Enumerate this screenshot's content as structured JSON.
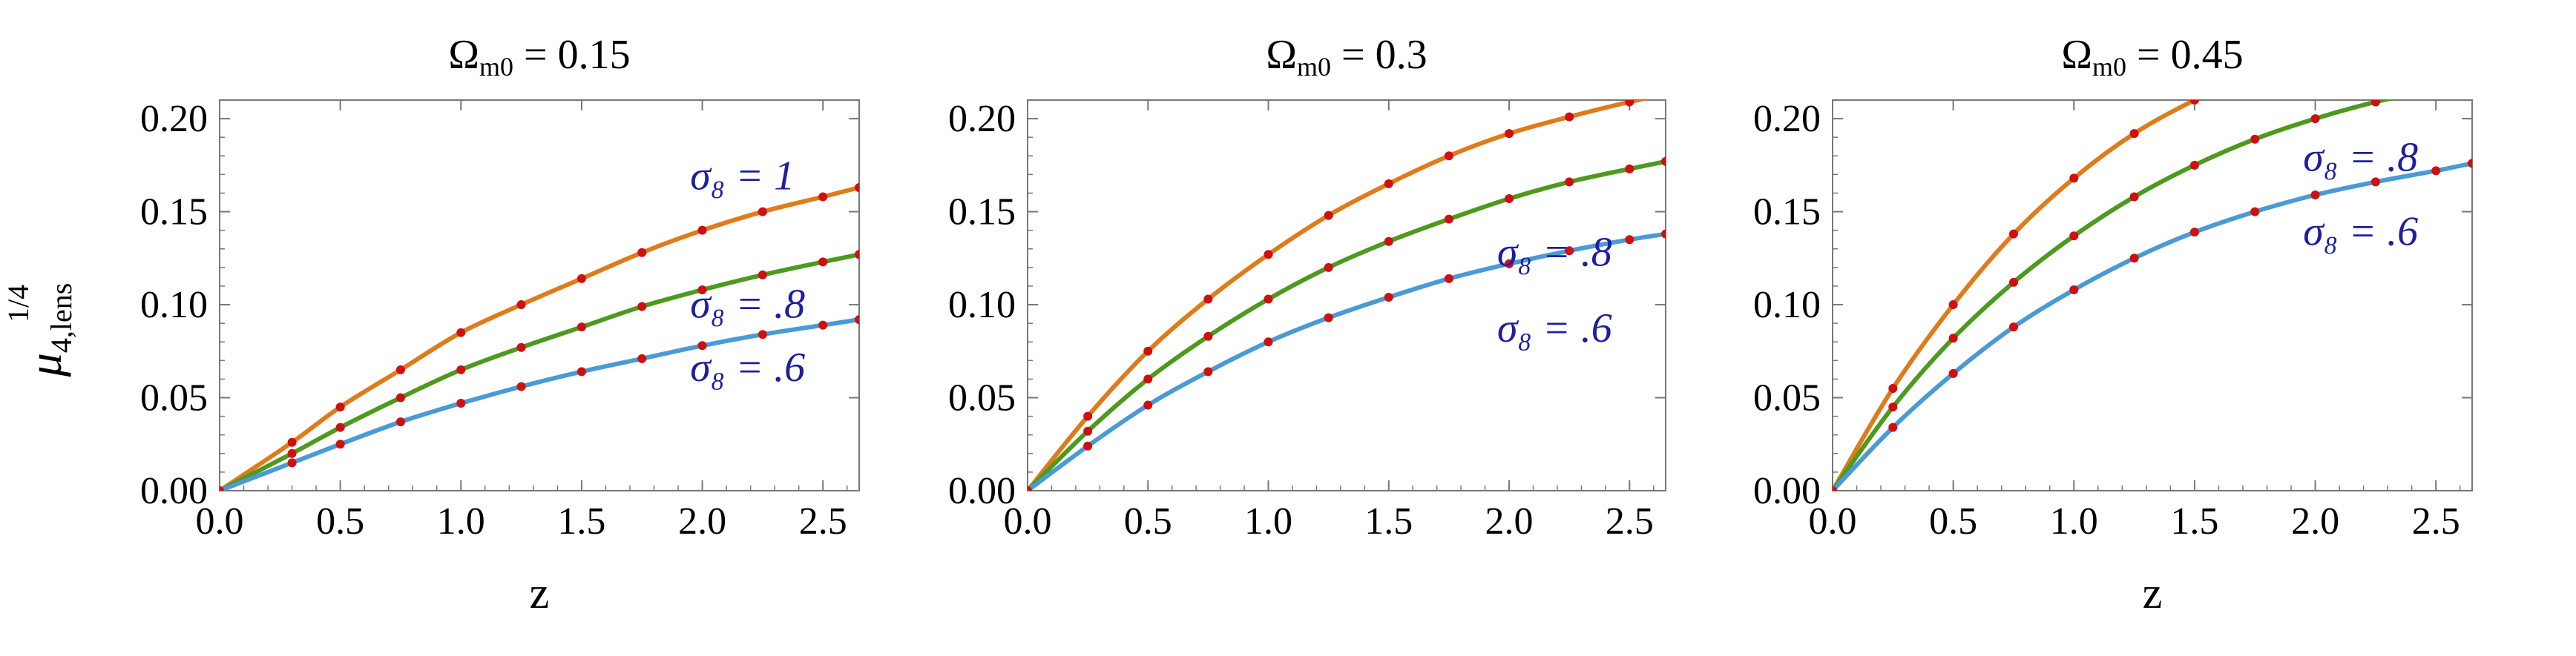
{
  "ylabel": {
    "base": "μ",
    "sup": "1/4",
    "sub": "4,lens"
  },
  "xlabel": "z",
  "chart_data": [
    {
      "type": "line",
      "title": {
        "symbol": "Ω",
        "sub": "m0",
        "rest": " = 0.15"
      },
      "xlabel": "z",
      "xlim": [
        0,
        2.65
      ],
      "ylim": [
        0,
        0.21
      ],
      "xticks": [
        "0.0",
        "0.5",
        "1.0",
        "1.5",
        "2.0",
        "2.5"
      ],
      "yticks": [
        "0.00",
        "0.05",
        "0.10",
        "0.15",
        "0.20"
      ],
      "series": [
        {
          "color": "#e07b1a",
          "values": [
            [
              0,
              0
            ],
            [
              0.3,
              0.026
            ],
            [
              0.5,
              0.045
            ],
            [
              0.75,
              0.065
            ],
            [
              1.0,
              0.085
            ],
            [
              1.25,
              0.1
            ],
            [
              1.5,
              0.114
            ],
            [
              1.75,
              0.128
            ],
            [
              2.0,
              0.14
            ],
            [
              2.25,
              0.15
            ],
            [
              2.5,
              0.158
            ],
            [
              2.65,
              0.163
            ]
          ]
        },
        {
          "color": "#4c9a1e",
          "values": [
            [
              0,
              0
            ],
            [
              0.3,
              0.02
            ],
            [
              0.5,
              0.034
            ],
            [
              0.75,
              0.05
            ],
            [
              1.0,
              0.065
            ],
            [
              1.25,
              0.077
            ],
            [
              1.5,
              0.088
            ],
            [
              1.75,
              0.099
            ],
            [
              2.0,
              0.108
            ],
            [
              2.25,
              0.116
            ],
            [
              2.5,
              0.123
            ],
            [
              2.65,
              0.127
            ]
          ]
        },
        {
          "color": "#4a9ad6",
          "values": [
            [
              0,
              0
            ],
            [
              0.3,
              0.015
            ],
            [
              0.5,
              0.025
            ],
            [
              0.75,
              0.037
            ],
            [
              1.0,
              0.047
            ],
            [
              1.25,
              0.056
            ],
            [
              1.5,
              0.064
            ],
            [
              1.75,
              0.071
            ],
            [
              2.0,
              0.078
            ],
            [
              2.25,
              0.084
            ],
            [
              2.5,
              0.089
            ],
            [
              2.65,
              0.092
            ]
          ]
        }
      ],
      "annotations": [
        {
          "text": "σ₈ = 1",
          "x": 1.95,
          "y": 0.162
        },
        {
          "text": "σ₈ = .8",
          "x": 1.95,
          "y": 0.093
        },
        {
          "text": "σ₈ = .6",
          "x": 1.95,
          "y": 0.059
        }
      ]
    },
    {
      "type": "line",
      "title": {
        "symbol": "Ω",
        "sub": "m0",
        "rest": " = 0.3"
      },
      "xlabel": "",
      "xlim": [
        0,
        2.65
      ],
      "ylim": [
        0,
        0.21
      ],
      "xticks": [
        "0.0",
        "0.5",
        "1.0",
        "1.5",
        "2.0",
        "2.5"
      ],
      "yticks": [
        "0.00",
        "0.05",
        "0.10",
        "0.15",
        "0.20"
      ],
      "series": [
        {
          "color": "#e07b1a",
          "values": [
            [
              0,
              0
            ],
            [
              0.25,
              0.04
            ],
            [
              0.5,
              0.075
            ],
            [
              0.75,
              0.103
            ],
            [
              1.0,
              0.127
            ],
            [
              1.25,
              0.148
            ],
            [
              1.5,
              0.165
            ],
            [
              1.75,
              0.18
            ],
            [
              2.0,
              0.192
            ],
            [
              2.25,
              0.201
            ],
            [
              2.5,
              0.209
            ],
            [
              2.65,
              0.213
            ]
          ]
        },
        {
          "color": "#4c9a1e",
          "values": [
            [
              0,
              0
            ],
            [
              0.25,
              0.032
            ],
            [
              0.5,
              0.06
            ],
            [
              0.75,
              0.083
            ],
            [
              1.0,
              0.103
            ],
            [
              1.25,
              0.12
            ],
            [
              1.5,
              0.134
            ],
            [
              1.75,
              0.146
            ],
            [
              2.0,
              0.157
            ],
            [
              2.25,
              0.166
            ],
            [
              2.5,
              0.173
            ],
            [
              2.65,
              0.177
            ]
          ]
        },
        {
          "color": "#4a9ad6",
          "values": [
            [
              0,
              0
            ],
            [
              0.25,
              0.024
            ],
            [
              0.5,
              0.046
            ],
            [
              0.75,
              0.064
            ],
            [
              1.0,
              0.08
            ],
            [
              1.25,
              0.093
            ],
            [
              1.5,
              0.104
            ],
            [
              1.75,
              0.114
            ],
            [
              2.0,
              0.122
            ],
            [
              2.25,
              0.129
            ],
            [
              2.5,
              0.135
            ],
            [
              2.65,
              0.138
            ]
          ]
        }
      ],
      "annotations": [
        {
          "text": "σ₈ = .8",
          "x": 1.95,
          "y": 0.121
        },
        {
          "text": "σ₈ = .6",
          "x": 1.95,
          "y": 0.08
        }
      ]
    },
    {
      "type": "line",
      "title": {
        "symbol": "Ω",
        "sub": "m0",
        "rest": " = 0.45"
      },
      "xlabel": "z",
      "xlim": [
        0,
        2.65
      ],
      "ylim": [
        0,
        0.21
      ],
      "xticks": [
        "0.0",
        "0.5",
        "1.0",
        "1.5",
        "2.0",
        "2.5"
      ],
      "yticks": [
        "0.00",
        "0.05",
        "0.10",
        "0.15",
        "0.20"
      ],
      "series": [
        {
          "color": "#e07b1a",
          "values": [
            [
              0,
              0
            ],
            [
              0.25,
              0.055
            ],
            [
              0.5,
              0.1
            ],
            [
              0.75,
              0.138
            ],
            [
              1.0,
              0.168
            ],
            [
              1.25,
              0.192
            ],
            [
              1.5,
              0.21
            ],
            [
              1.75,
              0.225
            ]
          ]
        },
        {
          "color": "#4c9a1e",
          "values": [
            [
              0,
              0
            ],
            [
              0.25,
              0.045
            ],
            [
              0.5,
              0.082
            ],
            [
              0.75,
              0.112
            ],
            [
              1.0,
              0.137
            ],
            [
              1.25,
              0.158
            ],
            [
              1.5,
              0.175
            ],
            [
              1.75,
              0.189
            ],
            [
              2.0,
              0.2
            ],
            [
              2.25,
              0.209
            ],
            [
              2.5,
              0.216
            ]
          ]
        },
        {
          "color": "#4a9ad6",
          "values": [
            [
              0,
              0
            ],
            [
              0.25,
              0.034
            ],
            [
              0.5,
              0.063
            ],
            [
              0.75,
              0.088
            ],
            [
              1.0,
              0.108
            ],
            [
              1.25,
              0.125
            ],
            [
              1.5,
              0.139
            ],
            [
              1.75,
              0.15
            ],
            [
              2.0,
              0.159
            ],
            [
              2.25,
              0.166
            ],
            [
              2.5,
              0.172
            ],
            [
              2.65,
              0.176
            ]
          ]
        }
      ],
      "annotations": [
        {
          "text": "σ₈ = .8",
          "x": 1.95,
          "y": 0.172
        },
        {
          "text": "σ₈ = .6",
          "x": 1.95,
          "y": 0.132
        }
      ]
    }
  ]
}
